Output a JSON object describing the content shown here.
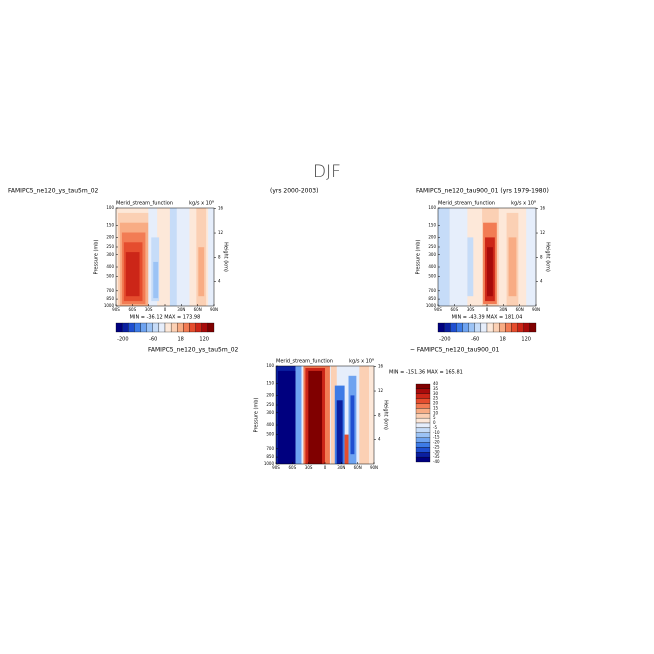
{
  "title": "DJF",
  "headers": [
    "FAMIPC5_ne120_ys_tau5m_02",
    "(yrs 2000-2003)",
    "FAMIPC5_ne120_tau900_01 (yrs 1979-1980)",
    "FAMIPC5_ne120_ys_tau5m_02",
    "~ FAMIPC5_ne120_tau900_01"
  ],
  "chart_data": [
    {
      "type": "contour",
      "title": "Merid_stream_function",
      "units": "kg/s x 10⁹",
      "ylabel": "Pressure (mb)",
      "y2label": "Height (km)",
      "min_max": "MIN = -36.12   MAX = 173.98",
      "xlim": [
        -90,
        90
      ],
      "xticks": [
        {
          "value": -90,
          "label": "90S"
        },
        {
          "value": -60,
          "label": "60S"
        },
        {
          "value": -30,
          "label": "30S"
        },
        0,
        {
          "value": 30,
          "label": "30N"
        },
        {
          "value": 60,
          "label": "60N"
        },
        {
          "value": 90,
          "label": "90N"
        }
      ],
      "ylim": [
        100,
        1000
      ],
      "log_y": true,
      "yticks": [
        100,
        150,
        200,
        250,
        300,
        400,
        500,
        700,
        850,
        1000
      ],
      "y2ticks": [
        16,
        12,
        8,
        4
      ],
      "colorbar": {
        "orientation": "horizontal",
        "colors": [
          "#00007f",
          "#0a1fa0",
          "#1f4fd0",
          "#3d7be6",
          "#6ea3f0",
          "#9cc3f5",
          "#c6dcf8",
          "#e6eefb",
          "#fde8d9",
          "#fbd0b4",
          "#f8ac84",
          "#f27c54",
          "#e54d2e",
          "#cc2618",
          "#a80b0b",
          "#800000"
        ],
        "labels": [
          -200,
          -60,
          18,
          120
        ]
      }
    },
    {
      "type": "contour",
      "title": "Merid_stream_function",
      "units": "kg/s x 10⁹",
      "ylabel": "Pressure (mb)",
      "y2label": "Height (km)",
      "min_max": "MIN = -43.39   MAX = 181.04",
      "xlim": [
        -90,
        90
      ],
      "xticks": [
        {
          "value": -90,
          "label": "90S"
        },
        {
          "value": -60,
          "label": "60S"
        },
        {
          "value": -30,
          "label": "30S"
        },
        0,
        {
          "value": 30,
          "label": "30N"
        },
        {
          "value": 60,
          "label": "60N"
        },
        {
          "value": 90,
          "label": "90N"
        }
      ],
      "ylim": [
        100,
        1000
      ],
      "log_y": true,
      "yticks": [
        100,
        150,
        200,
        250,
        300,
        400,
        500,
        700,
        850,
        1000
      ],
      "y2ticks": [
        16,
        12,
        8,
        4
      ],
      "colorbar": {
        "orientation": "horizontal",
        "colors": [
          "#00007f",
          "#0a1fa0",
          "#1f4fd0",
          "#3d7be6",
          "#6ea3f0",
          "#9cc3f5",
          "#c6dcf8",
          "#e6eefb",
          "#fde8d9",
          "#fbd0b4",
          "#f8ac84",
          "#f27c54",
          "#e54d2e",
          "#cc2618",
          "#a80b0b",
          "#800000"
        ],
        "labels": [
          -200,
          -60,
          18,
          120
        ]
      }
    },
    {
      "type": "contour",
      "title": "Merid_stream_function",
      "units": "kg/s x 10⁹",
      "ylabel": "Pressure (mb)",
      "y2label": "Height (km)",
      "min_max": "MIN = -151.36   MAX = 165.81",
      "xlim": [
        -90,
        90
      ],
      "xticks": [
        {
          "value": -90,
          "label": "90S"
        },
        {
          "value": -60,
          "label": "60S"
        },
        {
          "value": -30,
          "label": "30S"
        },
        0,
        {
          "value": 30,
          "label": "30N"
        },
        {
          "value": 60,
          "label": "60N"
        },
        {
          "value": 90,
          "label": "90N"
        }
      ],
      "ylim": [
        100,
        1000
      ],
      "log_y": true,
      "yticks": [
        100,
        150,
        200,
        250,
        300,
        400,
        500,
        700,
        850,
        1000
      ],
      "y2ticks": [
        16,
        12,
        8,
        4
      ],
      "colorbar": {
        "orientation": "vertical",
        "colors": [
          "#800000",
          "#a80b0b",
          "#cc2618",
          "#e54d2e",
          "#f27c54",
          "#f8ac84",
          "#fbd0b4",
          "#fde8d9",
          "#e6eefb",
          "#c6dcf8",
          "#9cc3f5",
          "#6ea3f0",
          "#3d7be6",
          "#1f4fd0",
          "#0a1fa0",
          "#00007f"
        ],
        "labels": [
          40,
          35,
          30,
          25,
          20,
          15,
          10,
          5,
          0,
          -5,
          -10,
          -15,
          -20,
          -25,
          -30,
          -35,
          -40
        ]
      }
    }
  ]
}
